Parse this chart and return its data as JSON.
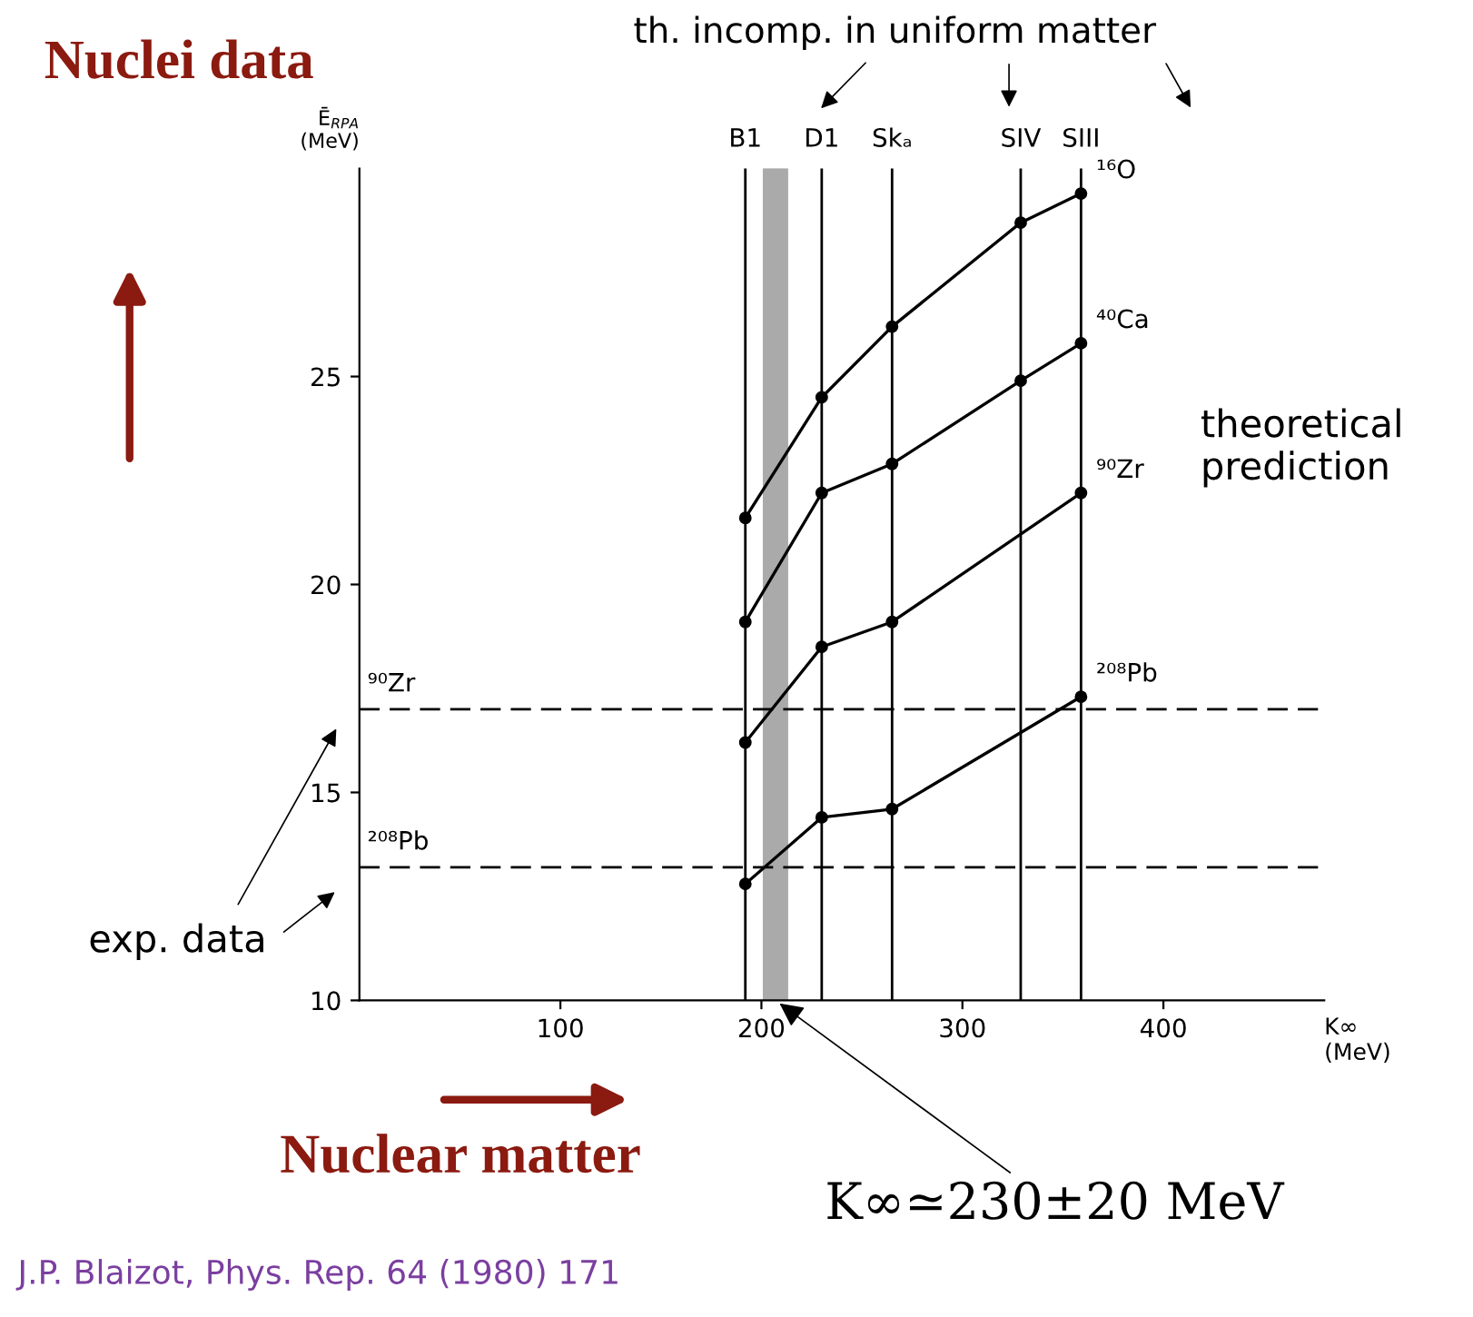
{
  "chart_data": {
    "type": "line",
    "ylabel": "Ē$_{RPA}$\n(MeV)",
    "xlabel": "K∞\n(MeV)",
    "xlim": [
      0,
      480
    ],
    "ylim": [
      10,
      30
    ],
    "xticks": [
      100,
      200,
      300,
      400
    ],
    "yticks": [
      10,
      15,
      20,
      25
    ],
    "grid": false,
    "marker": "circle",
    "line_style": "solid",
    "series": [
      {
        "name": "¹⁶O",
        "color": "#000000",
        "x": [
          192,
          230,
          265,
          329,
          359
        ],
        "values": [
          21.6,
          24.5,
          26.2,
          28.7,
          29.4
        ]
      },
      {
        "name": "⁴⁰Ca",
        "color": "#000000",
        "x": [
          192,
          230,
          265,
          329,
          359
        ],
        "values": [
          19.1,
          22.2,
          22.9,
          24.9,
          25.8
        ]
      },
      {
        "name": "⁹⁰Zr",
        "color": "#000000",
        "x": [
          192,
          230,
          265,
          359
        ],
        "values": [
          16.2,
          18.5,
          19.1,
          22.2
        ]
      },
      {
        "name": "²⁰⁸Pb",
        "color": "#000000",
        "x": [
          192,
          230,
          265,
          359
        ],
        "values": [
          12.8,
          14.4,
          14.6,
          17.3
        ]
      }
    ],
    "ref_lines": [
      {
        "axis": "x",
        "value": 192,
        "label": "B1",
        "color": "#000000",
        "line_style": "solid"
      },
      {
        "axis": "x",
        "value": 230,
        "label": "D1",
        "color": "#000000",
        "line_style": "solid"
      },
      {
        "axis": "x",
        "value": 265,
        "label": "Skₐ",
        "color": "#000000",
        "line_style": "solid"
      },
      {
        "axis": "x",
        "value": 329,
        "label": "SIV",
        "color": "#000000",
        "line_style": "solid"
      },
      {
        "axis": "x",
        "value": 359,
        "label": "SIII",
        "color": "#000000",
        "line_style": "solid"
      },
      {
        "axis": "y",
        "value": 17.0,
        "label": "⁹⁰Zr",
        "color": "#000000",
        "line_style": "dashed"
      },
      {
        "axis": "y",
        "value": 13.2,
        "label": "²⁰⁸Pb",
        "color": "#000000",
        "line_style": "dashed"
      }
    ],
    "bands": [
      {
        "axis": "x",
        "from": 201,
        "to": 213,
        "color": "#aaaaaa"
      }
    ],
    "annotations": [
      "Nuclei data",
      "Nuclear matter",
      "th. incomp. in uniform matter",
      "theoretical prediction",
      "exp. data",
      {
        "text": "K∞≃230±20 MeV",
        "x": 207,
        "y": 10
      },
      "J.P. Blaizot, Phys. Rep. 64 (1980) 171"
    ]
  }
}
